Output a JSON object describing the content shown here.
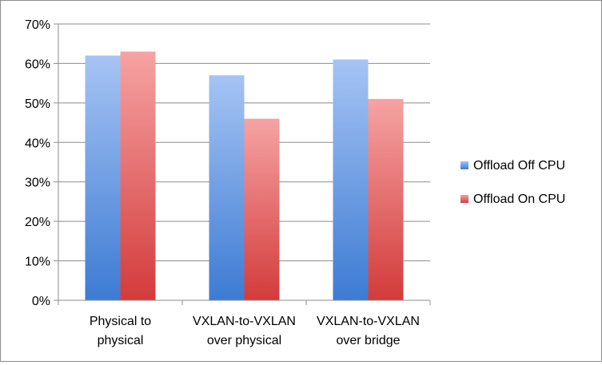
{
  "chart_data": {
    "type": "bar",
    "title": "",
    "xlabel": "",
    "ylabel": "",
    "categories": [
      "Physical to physical",
      "VXLAN-to-VXLAN over physical",
      "VXLAN-to-VXLAN over bridge"
    ],
    "category_label_lines": [
      [
        "Physical to",
        "physical"
      ],
      [
        "VXLAN-to-VXLAN",
        "over physical"
      ],
      [
        "VXLAN-to-VXLAN",
        "over bridge"
      ]
    ],
    "series": [
      {
        "name": "Offload Off CPU",
        "values": [
          62,
          57,
          61
        ],
        "color_top": "#a6c4f4",
        "color_bottom": "#3d7bd3"
      },
      {
        "name": "Offload On CPU",
        "values": [
          63,
          46,
          51
        ],
        "color_top": "#f6a3a3",
        "color_bottom": "#d33b3b"
      }
    ],
    "ylim": [
      0,
      70
    ],
    "yticks": [
      0,
      10,
      20,
      30,
      40,
      50,
      60,
      70
    ],
    "ytick_labels": [
      "0%",
      "10%",
      "20%",
      "30%",
      "40%",
      "50%",
      "60%",
      "70%"
    ],
    "grid": true,
    "legend_position": "right"
  }
}
